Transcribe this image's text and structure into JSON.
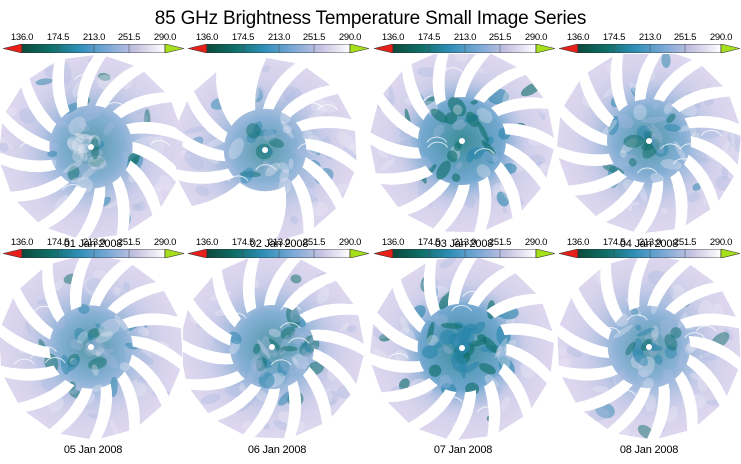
{
  "chart_data": {
    "type": "heatmap",
    "title": "85 GHz Brightness Temperature Small Image Series",
    "layout": {
      "rows": 2,
      "cols": 4
    },
    "colorbar": {
      "ticks": [
        "136.0",
        "174.5",
        "213.0",
        "251.5",
        "290.0"
      ],
      "range": [
        136.0,
        290.0
      ],
      "under_color": "#e8201a",
      "over_color": "#a6e01a",
      "gradient": [
        "#0b4a3c",
        "#0f6f68",
        "#2f8fb8",
        "#7aa8d6",
        "#c7c3e2",
        "#ffffff"
      ]
    },
    "panels": [
      {
        "label": "01 Jan 2008",
        "intensity": 0.45,
        "missing_blades": []
      },
      {
        "label": "02 Jan 2008",
        "intensity": 0.4,
        "missing_blades": [
          2,
          3,
          8
        ]
      },
      {
        "label": "03 Jan 2008",
        "intensity": 0.75,
        "missing_blades": []
      },
      {
        "label": "04 Jan 2008",
        "intensity": 0.5,
        "missing_blades": []
      },
      {
        "label": "05 Jan 2008",
        "intensity": 0.45,
        "missing_blades": []
      },
      {
        "label": "06 Jan 2008",
        "intensity": 0.5,
        "missing_blades": []
      },
      {
        "label": "07 Jan 2008",
        "intensity": 0.8,
        "missing_blades": []
      },
      {
        "label": "08 Jan 2008",
        "intensity": 0.4,
        "missing_blades": []
      }
    ]
  },
  "title": "85 GHz Brightness Temperature Small Image Series",
  "colorbars": [
    {
      "ticks": [
        "136.0",
        "174.5",
        "213.0",
        "251.5",
        "290.0"
      ]
    },
    {
      "ticks": [
        "136.0",
        "174.5",
        "213.0",
        "251.5",
        "290.0"
      ]
    },
    {
      "ticks": [
        "136.0",
        "174.5",
        "213.0",
        "251.5",
        "290.0"
      ]
    },
    {
      "ticks": [
        "136.0",
        "174.5",
        "213.0",
        "251.5",
        "290.0"
      ]
    },
    {
      "ticks": [
        "136.0",
        "174.5",
        "213.0",
        "251.5",
        "290.0"
      ]
    },
    {
      "ticks": [
        "136.0",
        "174.5",
        "213.0",
        "251.5",
        "290.0"
      ]
    },
    {
      "ticks": [
        "136.0",
        "174.5",
        "213.0",
        "251.5",
        "290.0"
      ]
    },
    {
      "ticks": [
        "136.0",
        "174.5",
        "213.0",
        "251.5",
        "290.0"
      ]
    }
  ],
  "dates": [
    "01 Jan 2008",
    "02 Jan 2008",
    "03 Jan 2008",
    "04 Jan 2008",
    "05 Jan 2008",
    "06 Jan 2008",
    "07 Jan 2008",
    "08 Jan 2008"
  ]
}
